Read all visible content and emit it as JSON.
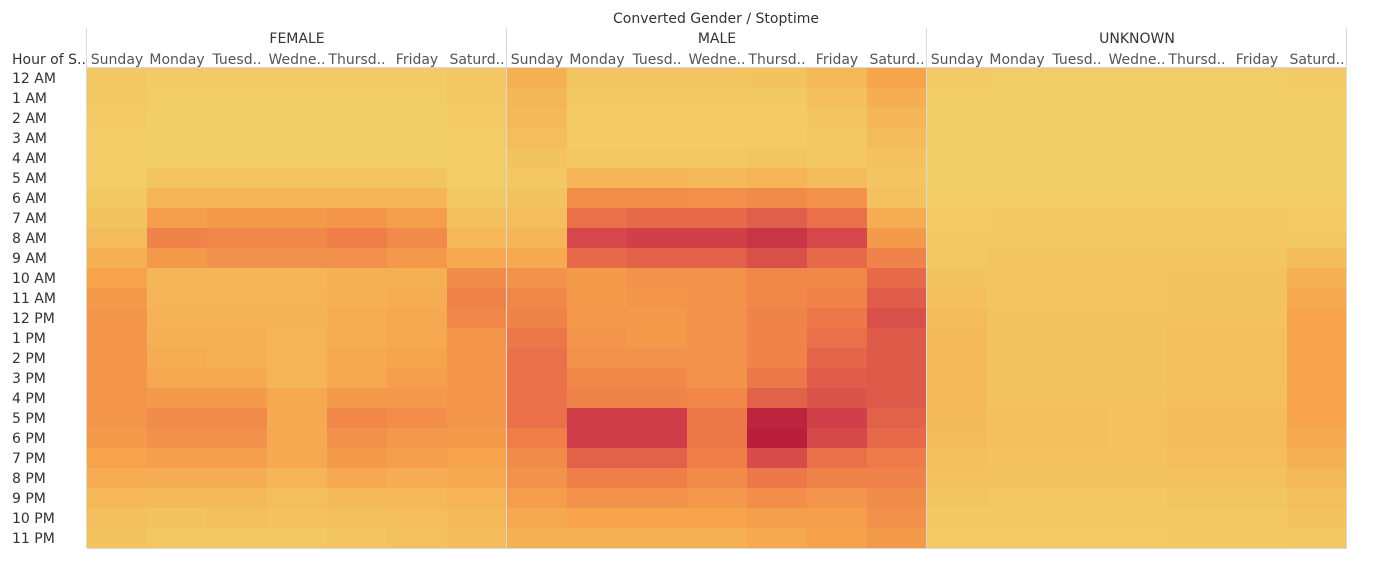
{
  "chart_data": {
    "type": "heatmap",
    "title": "Converted Gender / Stoptime",
    "row_header": "Hour of S..",
    "groups": [
      "FEMALE",
      "MALE",
      "UNKNOWN"
    ],
    "day_labels": [
      "Sunday",
      "Monday",
      "Tuesd..",
      "Wedne..",
      "Thursd..",
      "Friday",
      "Saturd.."
    ],
    "hours": [
      "12 AM",
      "1 AM",
      "2 AM",
      "3 AM",
      "4 AM",
      "5 AM",
      "6 AM",
      "7 AM",
      "8 AM",
      "9 AM",
      "10 AM",
      "11 AM",
      "12 PM",
      "1 PM",
      "2 PM",
      "3 PM",
      "4 PM",
      "5 PM",
      "6 PM",
      "7 PM",
      "8 PM",
      "9 PM",
      "10 PM",
      "11 PM"
    ],
    "color_scale": [
      "#f2d26a",
      "#f6a34c",
      "#ee7b49",
      "#d4454a",
      "#b71c3b"
    ],
    "value_range": [
      0,
      1
    ],
    "values": [
      [
        0.06,
        0.04,
        0.04,
        0.04,
        0.04,
        0.04,
        0.06,
        0.18,
        0.07,
        0.07,
        0.07,
        0.08,
        0.14,
        0.24,
        0.04,
        0.03,
        0.03,
        0.03,
        0.03,
        0.03,
        0.04
      ],
      [
        0.05,
        0.03,
        0.03,
        0.03,
        0.03,
        0.03,
        0.05,
        0.15,
        0.05,
        0.05,
        0.05,
        0.05,
        0.1,
        0.19,
        0.03,
        0.02,
        0.02,
        0.02,
        0.02,
        0.02,
        0.03
      ],
      [
        0.04,
        0.02,
        0.02,
        0.02,
        0.02,
        0.02,
        0.04,
        0.13,
        0.04,
        0.04,
        0.04,
        0.04,
        0.07,
        0.15,
        0.02,
        0.02,
        0.02,
        0.02,
        0.02,
        0.02,
        0.02
      ],
      [
        0.03,
        0.02,
        0.02,
        0.02,
        0.02,
        0.02,
        0.03,
        0.11,
        0.04,
        0.04,
        0.04,
        0.04,
        0.06,
        0.12,
        0.02,
        0.02,
        0.02,
        0.02,
        0.02,
        0.02,
        0.02
      ],
      [
        0.03,
        0.03,
        0.03,
        0.03,
        0.03,
        0.03,
        0.03,
        0.08,
        0.06,
        0.06,
        0.06,
        0.07,
        0.06,
        0.09,
        0.02,
        0.02,
        0.02,
        0.02,
        0.02,
        0.02,
        0.02
      ],
      [
        0.03,
        0.07,
        0.07,
        0.07,
        0.07,
        0.07,
        0.03,
        0.06,
        0.15,
        0.15,
        0.14,
        0.16,
        0.12,
        0.07,
        0.02,
        0.02,
        0.02,
        0.02,
        0.02,
        0.02,
        0.02
      ],
      [
        0.05,
        0.16,
        0.16,
        0.16,
        0.16,
        0.16,
        0.05,
        0.08,
        0.38,
        0.38,
        0.37,
        0.4,
        0.35,
        0.09,
        0.03,
        0.03,
        0.03,
        0.03,
        0.03,
        0.03,
        0.03
      ],
      [
        0.08,
        0.28,
        0.3,
        0.3,
        0.33,
        0.28,
        0.1,
        0.11,
        0.55,
        0.58,
        0.58,
        0.63,
        0.55,
        0.2,
        0.04,
        0.05,
        0.05,
        0.05,
        0.05,
        0.05,
        0.04
      ],
      [
        0.12,
        0.45,
        0.42,
        0.42,
        0.48,
        0.4,
        0.14,
        0.15,
        0.74,
        0.78,
        0.78,
        0.85,
        0.74,
        0.3,
        0.05,
        0.06,
        0.06,
        0.06,
        0.06,
        0.06,
        0.05
      ],
      [
        0.18,
        0.3,
        0.36,
        0.36,
        0.36,
        0.32,
        0.22,
        0.22,
        0.58,
        0.62,
        0.62,
        0.7,
        0.58,
        0.45,
        0.06,
        0.07,
        0.07,
        0.07,
        0.07,
        0.07,
        0.12
      ],
      [
        0.25,
        0.15,
        0.15,
        0.15,
        0.18,
        0.18,
        0.4,
        0.35,
        0.3,
        0.35,
        0.35,
        0.42,
        0.42,
        0.58,
        0.08,
        0.07,
        0.07,
        0.07,
        0.08,
        0.08,
        0.18
      ],
      [
        0.3,
        0.16,
        0.16,
        0.16,
        0.18,
        0.2,
        0.45,
        0.42,
        0.3,
        0.33,
        0.35,
        0.42,
        0.45,
        0.64,
        0.1,
        0.07,
        0.07,
        0.07,
        0.08,
        0.08,
        0.22
      ],
      [
        0.33,
        0.17,
        0.17,
        0.17,
        0.2,
        0.22,
        0.42,
        0.45,
        0.32,
        0.3,
        0.35,
        0.45,
        0.52,
        0.7,
        0.12,
        0.08,
        0.08,
        0.08,
        0.09,
        0.09,
        0.25
      ],
      [
        0.33,
        0.18,
        0.18,
        0.16,
        0.2,
        0.22,
        0.33,
        0.52,
        0.33,
        0.3,
        0.35,
        0.45,
        0.55,
        0.65,
        0.13,
        0.08,
        0.08,
        0.08,
        0.1,
        0.1,
        0.25
      ],
      [
        0.33,
        0.2,
        0.18,
        0.16,
        0.22,
        0.24,
        0.33,
        0.55,
        0.35,
        0.35,
        0.35,
        0.45,
        0.6,
        0.65,
        0.13,
        0.08,
        0.08,
        0.08,
        0.1,
        0.1,
        0.25
      ],
      [
        0.33,
        0.22,
        0.22,
        0.16,
        0.22,
        0.28,
        0.33,
        0.55,
        0.42,
        0.42,
        0.35,
        0.52,
        0.64,
        0.65,
        0.13,
        0.08,
        0.08,
        0.08,
        0.1,
        0.1,
        0.25
      ],
      [
        0.33,
        0.3,
        0.3,
        0.22,
        0.3,
        0.32,
        0.33,
        0.55,
        0.45,
        0.45,
        0.42,
        0.62,
        0.68,
        0.65,
        0.13,
        0.09,
        0.09,
        0.09,
        0.11,
        0.11,
        0.25
      ],
      [
        0.33,
        0.4,
        0.4,
        0.22,
        0.42,
        0.38,
        0.33,
        0.55,
        0.8,
        0.8,
        0.52,
        0.95,
        0.78,
        0.62,
        0.13,
        0.1,
        0.1,
        0.09,
        0.12,
        0.12,
        0.25
      ],
      [
        0.3,
        0.36,
        0.36,
        0.22,
        0.36,
        0.32,
        0.3,
        0.48,
        0.8,
        0.8,
        0.52,
        0.98,
        0.73,
        0.58,
        0.12,
        0.1,
        0.1,
        0.09,
        0.12,
        0.12,
        0.22
      ],
      [
        0.25,
        0.28,
        0.28,
        0.22,
        0.3,
        0.28,
        0.25,
        0.4,
        0.62,
        0.62,
        0.48,
        0.72,
        0.55,
        0.5,
        0.1,
        0.09,
        0.09,
        0.09,
        0.11,
        0.11,
        0.18
      ],
      [
        0.2,
        0.2,
        0.2,
        0.16,
        0.22,
        0.2,
        0.22,
        0.35,
        0.48,
        0.48,
        0.4,
        0.52,
        0.45,
        0.45,
        0.09,
        0.08,
        0.08,
        0.08,
        0.09,
        0.09,
        0.14
      ],
      [
        0.14,
        0.13,
        0.13,
        0.11,
        0.13,
        0.14,
        0.16,
        0.28,
        0.35,
        0.35,
        0.32,
        0.38,
        0.33,
        0.4,
        0.07,
        0.06,
        0.06,
        0.06,
        0.07,
        0.07,
        0.11
      ],
      [
        0.1,
        0.08,
        0.1,
        0.09,
        0.1,
        0.11,
        0.13,
        0.22,
        0.25,
        0.25,
        0.25,
        0.28,
        0.28,
        0.36,
        0.05,
        0.05,
        0.05,
        0.05,
        0.06,
        0.06,
        0.08
      ],
      [
        0.08,
        0.06,
        0.06,
        0.06,
        0.07,
        0.09,
        0.12,
        0.18,
        0.18,
        0.18,
        0.18,
        0.22,
        0.26,
        0.3,
        0.04,
        0.04,
        0.04,
        0.04,
        0.05,
        0.05,
        0.06
      ]
    ]
  }
}
